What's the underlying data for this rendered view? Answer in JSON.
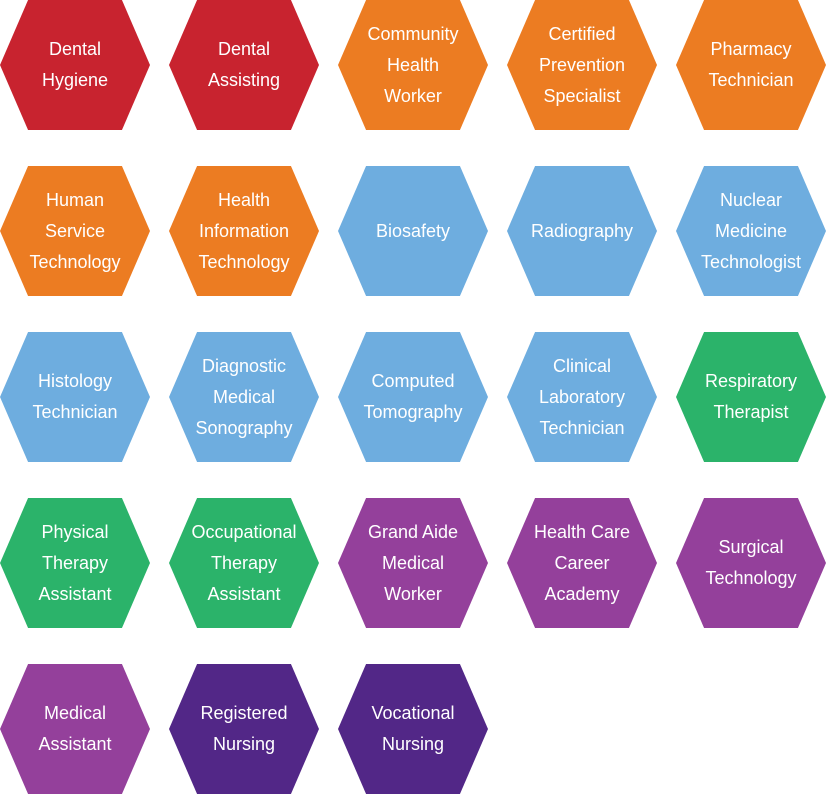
{
  "colors": {
    "red": "#C8232F",
    "orange": "#EC7C22",
    "blue": "#6EADDF",
    "green": "#2BB36A",
    "magenta": "#94409B",
    "purple": "#522787"
  },
  "programs": [
    {
      "label": "Dental\nHygiene",
      "color": "red"
    },
    {
      "label": "Dental\nAssisting",
      "color": "red"
    },
    {
      "label": "Community\nHealth\nWorker",
      "color": "orange"
    },
    {
      "label": "Certified\nPrevention\nSpecialist",
      "color": "orange"
    },
    {
      "label": "Pharmacy\nTechnician",
      "color": "orange"
    },
    {
      "label": "Human\nService\nTechnology",
      "color": "orange"
    },
    {
      "label": "Health\nInformation\nTechnology",
      "color": "orange"
    },
    {
      "label": "Biosafety",
      "color": "blue"
    },
    {
      "label": "Radiography",
      "color": "blue"
    },
    {
      "label": "Nuclear\nMedicine\nTechnologist",
      "color": "blue"
    },
    {
      "label": "Histology\nTechnician",
      "color": "blue"
    },
    {
      "label": "Diagnostic\nMedical\nSonography",
      "color": "blue"
    },
    {
      "label": "Computed\nTomography",
      "color": "blue"
    },
    {
      "label": "Clinical\nLaboratory\nTechnician",
      "color": "blue"
    },
    {
      "label": "Respiratory\nTherapist",
      "color": "green"
    },
    {
      "label": "Physical\nTherapy\nAssistant",
      "color": "green"
    },
    {
      "label": "Occupational\nTherapy\nAssistant",
      "color": "green"
    },
    {
      "label": "Grand Aide\nMedical\nWorker",
      "color": "magenta"
    },
    {
      "label": "Health Care\nCareer\nAcademy",
      "color": "magenta"
    },
    {
      "label": "Surgical\nTechnology",
      "color": "magenta"
    },
    {
      "label": "Medical\nAssistant",
      "color": "magenta"
    },
    {
      "label": "Registered\nNursing",
      "color": "purple"
    },
    {
      "label": "Vocational\nNursing",
      "color": "purple"
    }
  ]
}
